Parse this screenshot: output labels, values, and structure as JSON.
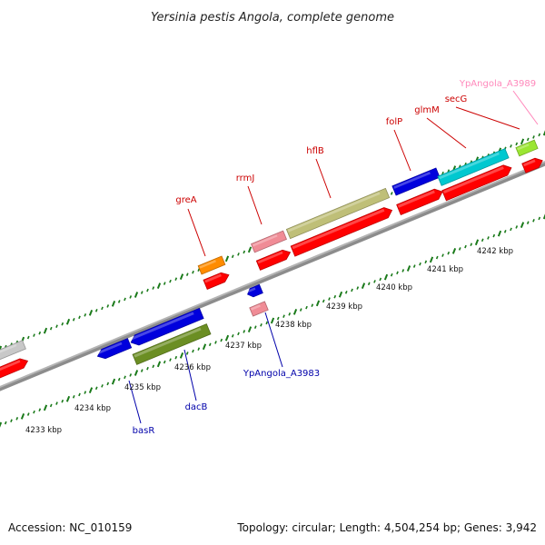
{
  "title": "Yersinia pestis Angola, complete genome",
  "footer": {
    "accession": "Accession: NC_010159",
    "summary": "Topology: circular; Length: 4,504,254 bp; Genes: 3,942"
  },
  "scale_labels": [
    "4233 kbp",
    "4234 kbp",
    "4235 kbp",
    "4236 kbp",
    "4237 kbp",
    "4238 kbp",
    "4239 kbp",
    "4240 kbp",
    "4241 kbp",
    "4242 kbp"
  ],
  "forward_genes": [
    {
      "label": "greA",
      "color": "#cc0000"
    },
    {
      "label": "rrmJ",
      "color": "#cc0000"
    },
    {
      "label": "hflB",
      "color": "#cc0000"
    },
    {
      "label": "folP",
      "color": "#cc0000"
    },
    {
      "label": "glmM",
      "color": "#cc0000"
    },
    {
      "label": "secG",
      "color": "#cc0000"
    },
    {
      "label": "YpAngola_A3989",
      "color": "#ff88bb"
    }
  ],
  "reverse_genes": [
    {
      "label": "basR",
      "color": "#0000aa"
    },
    {
      "label": "dacB",
      "color": "#0000aa"
    },
    {
      "label": "YpAngola_A3983",
      "color": "#0000aa"
    }
  ],
  "colors": {
    "cds_red": "#ff0000",
    "gene_blue": "#0000dd",
    "olive": "#bfbf78",
    "green": "#6b8e23",
    "cyan": "#00c8d0",
    "orange": "#ff8c00",
    "pink": "#f08c96",
    "lime": "#9be632",
    "gray": "#c8c8c8",
    "tick_green": "#1a7a1a"
  }
}
